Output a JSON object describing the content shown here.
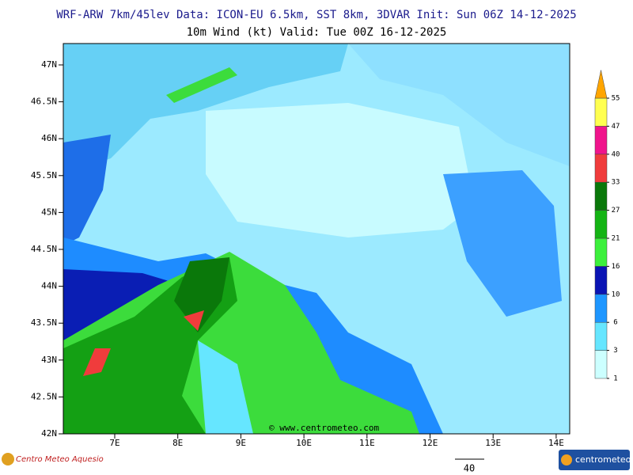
{
  "header": {
    "title": "WRF-ARW 7km/45lev  Data: ICON-EU 6.5km, SST 8km, 3DVAR  Init: Sun 06Z 14-12-2025",
    "subtitle": "10m Wind (kt)  Valid: Tue 00Z 16-12-2025"
  },
  "map": {
    "lat_labels": [
      "47N",
      "46.5N",
      "46N",
      "45.5N",
      "45N",
      "44.5N",
      "44N",
      "43.5N",
      "43N",
      "42.5N",
      "42N"
    ],
    "lon_labels": [
      "7E",
      "8E",
      "9E",
      "10E",
      "11E",
      "12E",
      "13E",
      "14E"
    ],
    "credit": "© www.centrometeo.com"
  },
  "colorbar": {
    "levels": [
      1,
      3,
      6,
      10,
      16,
      21,
      27,
      33,
      40,
      47,
      55
    ],
    "colors": [
      "#ccffff",
      "#66e6ff",
      "#1e96ff",
      "#0a14b4",
      "#3cf03c",
      "#14b414",
      "#0a780a",
      "#f03c3c",
      "#f0148c",
      "#ffff50",
      "#ffa500"
    ]
  },
  "footer": {
    "left_logo": "Centro Meteo Aquesio",
    "scale_label": "40",
    "right_logo": "centrometeo"
  }
}
